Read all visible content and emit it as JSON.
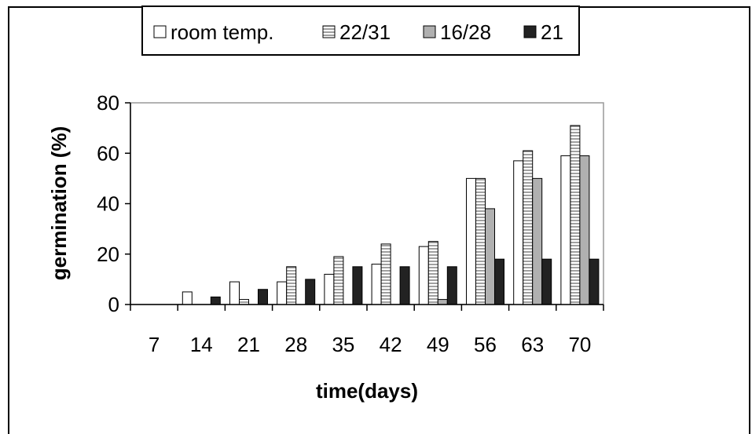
{
  "chart_data": {
    "type": "bar",
    "title": "",
    "xlabel": "time(days)",
    "ylabel": "germination (%)",
    "ylim": [
      0,
      80
    ],
    "yticks": [
      0,
      20,
      40,
      60,
      80
    ],
    "categories": [
      "7",
      "14",
      "21",
      "28",
      "35",
      "42",
      "49",
      "56",
      "63",
      "70"
    ],
    "legend_position": "top",
    "series": [
      {
        "name": "room temp.",
        "fill": "white",
        "values": [
          0,
          5,
          9,
          9,
          12,
          16,
          23,
          50,
          57,
          59
        ]
      },
      {
        "name": "22/31",
        "fill": "striped",
        "values": [
          0,
          0,
          2,
          15,
          19,
          24,
          25,
          50,
          61,
          71
        ]
      },
      {
        "name": "16/28",
        "fill": "#b0b0b0",
        "values": [
          0,
          0,
          0,
          0,
          0,
          0,
          2,
          38,
          50,
          59
        ]
      },
      {
        "name": "21",
        "fill": "#222222",
        "values": [
          0,
          3,
          6,
          10,
          15,
          15,
          15,
          18,
          18,
          18
        ]
      }
    ]
  }
}
